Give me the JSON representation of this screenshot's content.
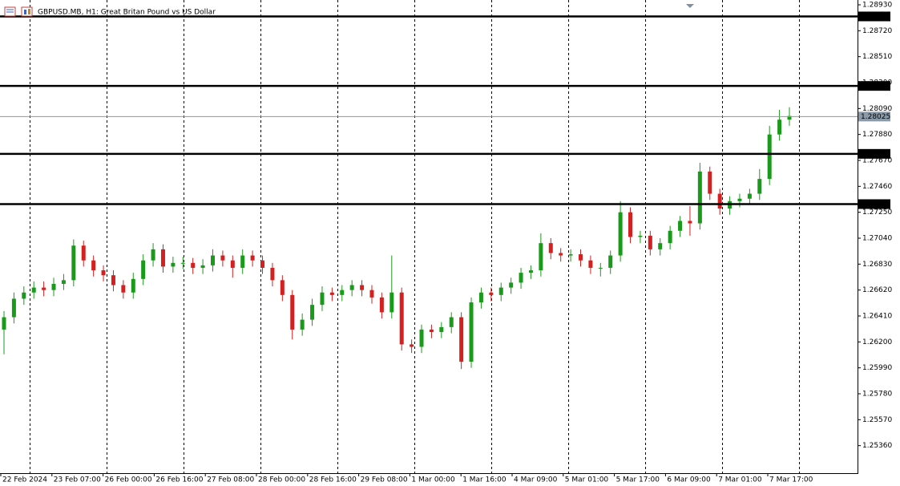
{
  "chart_data": {
    "type": "candlestick",
    "title": "GBPUSD.MB, H1:  Great Britan Pound vs US Dollar",
    "up_color": "#1a9a1a",
    "down_color": "#d42020",
    "ylim": [
      1.25137,
      1.28969
    ],
    "yticks": [
      {
        "value": 1.2893,
        "label": "1.28930"
      },
      {
        "value": 1.2872,
        "label": "1.28720"
      },
      {
        "value": 1.2851,
        "label": "1.28510"
      },
      {
        "value": 1.283,
        "label": "1.28300"
      },
      {
        "value": 1.2809,
        "label": "1.28090"
      },
      {
        "value": 1.2788,
        "label": "1.27880"
      },
      {
        "value": 1.2767,
        "label": "1.27670"
      },
      {
        "value": 1.2746,
        "label": "1.27460"
      },
      {
        "value": 1.2725,
        "label": "1.27250"
      },
      {
        "value": 1.2704,
        "label": "1.27040"
      },
      {
        "value": 1.2683,
        "label": "1.26830"
      },
      {
        "value": 1.2662,
        "label": "1.26620"
      },
      {
        "value": 1.2641,
        "label": "1.26410"
      },
      {
        "value": 1.262,
        "label": "1.26200"
      },
      {
        "value": 1.2599,
        "label": "1.25990"
      },
      {
        "value": 1.2578,
        "label": "1.25780"
      },
      {
        "value": 1.2557,
        "label": "1.25570"
      },
      {
        "value": 1.2536,
        "label": "1.25360"
      }
    ],
    "x_labels": [
      "22 Feb 2024",
      "23 Feb 07:00",
      "26 Feb 00:00",
      "26 Feb 16:00",
      "27 Feb 08:00",
      "28 Feb 00:00",
      "28 Feb 16:00",
      "29 Feb 08:00",
      "1 Mar 00:00",
      "1 Mar 16:00",
      "4 Mar 09:00",
      "5 Mar 01:00",
      "5 Mar 17:00",
      "6 Mar 09:00",
      "7 Mar 01:00",
      "7 Mar 17:00"
    ],
    "levels": [
      1.28836,
      1.28273,
      1.27723,
      1.27316
    ],
    "current_price": 1.28025,
    "open": [
      1.263,
      1.264,
      1.2655,
      1.266,
      1.2664,
      1.2662,
      1.2667,
      1.267,
      1.2698,
      1.2686,
      1.2678,
      1.2674,
      1.2666,
      1.266,
      1.2671,
      1.2686,
      1.2695,
      1.2681,
      1.2684,
      1.2684,
      1.268,
      1.2682,
      1.269,
      1.2686,
      1.268,
      1.269,
      1.2686,
      1.268,
      1.267,
      1.2658,
      1.263,
      1.2638,
      1.265,
      1.266,
      1.2658,
      1.2662,
      1.2666,
      1.2662,
      1.2656,
      1.2644,
      1.266,
      1.2618,
      1.2616,
      1.263,
      1.2628,
      1.2632,
      1.264,
      1.2604,
      1.2652,
      1.266,
      1.2658,
      1.2664,
      1.2668,
      1.2676,
      1.2678,
      1.27,
      1.2692,
      1.269,
      1.2691,
      1.2686,
      1.268,
      1.268,
      1.269,
      1.2725,
      1.2705,
      1.2706,
      1.2695,
      1.27,
      1.271,
      1.2718,
      1.2716,
      1.2758,
      1.274,
      1.2728,
      1.2734,
      1.2736,
      1.274,
      1.2752,
      1.2788,
      1.28
    ],
    "high": [
      1.2645,
      1.266,
      1.2665,
      1.2669,
      1.2669,
      1.2672,
      1.2675,
      1.2703,
      1.2702,
      1.269,
      1.2682,
      1.2678,
      1.267,
      1.2676,
      1.2691,
      1.27,
      1.2699,
      1.2689,
      1.2689,
      1.2688,
      1.2687,
      1.2695,
      1.2694,
      1.269,
      1.2695,
      1.2694,
      1.269,
      1.2684,
      1.2674,
      1.2662,
      1.2643,
      1.2655,
      1.2665,
      1.2664,
      1.2666,
      1.267,
      1.267,
      1.2666,
      1.266,
      1.269,
      1.2664,
      1.2622,
      1.2634,
      1.2634,
      1.2636,
      1.2644,
      1.2644,
      1.2656,
      1.2664,
      1.2664,
      1.2668,
      1.2672,
      1.268,
      1.2682,
      1.2708,
      1.2704,
      1.2696,
      1.2695,
      1.2695,
      1.269,
      1.2684,
      1.2694,
      1.2734,
      1.2729,
      1.271,
      1.271,
      1.2704,
      1.2714,
      1.2722,
      1.273,
      1.2765,
      1.2762,
      1.2744,
      1.2738,
      1.274,
      1.2744,
      1.276,
      1.2795,
      1.2808,
      1.281
    ],
    "low": [
      1.261,
      1.2635,
      1.265,
      1.2655,
      1.2657,
      1.2657,
      1.2662,
      1.2665,
      1.2681,
      1.2673,
      1.2669,
      1.2661,
      1.2655,
      1.2655,
      1.2666,
      1.2681,
      1.2676,
      1.2676,
      1.2679,
      1.2675,
      1.2675,
      1.2677,
      1.2681,
      1.2672,
      1.2675,
      1.2681,
      1.2675,
      1.2665,
      1.2653,
      1.2622,
      1.2625,
      1.2633,
      1.2645,
      1.2653,
      1.2653,
      1.2657,
      1.2657,
      1.2651,
      1.2639,
      1.2639,
      1.2613,
      1.2611,
      1.2611,
      1.2623,
      1.2623,
      1.2627,
      1.2598,
      1.2599,
      1.2647,
      1.2653,
      1.2653,
      1.2659,
      1.2663,
      1.2671,
      1.2673,
      1.2687,
      1.2685,
      1.2685,
      1.2681,
      1.2675,
      1.2673,
      1.2675,
      1.2685,
      1.27,
      1.27,
      1.269,
      1.269,
      1.2695,
      1.2705,
      1.2706,
      1.2711,
      1.2735,
      1.2723,
      1.2723,
      1.2729,
      1.2731,
      1.2735,
      1.2747,
      1.2783,
      1.2795
    ],
    "close": [
      1.264,
      1.2655,
      1.266,
      1.2664,
      1.2662,
      1.2667,
      1.267,
      1.2698,
      1.2686,
      1.2678,
      1.2674,
      1.2666,
      1.266,
      1.2671,
      1.2686,
      1.2695,
      1.2681,
      1.2684,
      1.2684,
      1.268,
      1.2682,
      1.269,
      1.2686,
      1.268,
      1.269,
      1.2686,
      1.268,
      1.267,
      1.2658,
      1.263,
      1.2638,
      1.265,
      1.266,
      1.2658,
      1.2662,
      1.2666,
      1.2662,
      1.2656,
      1.2644,
      1.266,
      1.2618,
      1.2616,
      1.263,
      1.2628,
      1.2632,
      1.264,
      1.2604,
      1.2652,
      1.266,
      1.2658,
      1.2664,
      1.2668,
      1.2676,
      1.2678,
      1.27,
      1.2692,
      1.269,
      1.2691,
      1.2686,
      1.268,
      1.268,
      1.269,
      1.2725,
      1.2705,
      1.2706,
      1.2695,
      1.27,
      1.271,
      1.2718,
      1.2716,
      1.2758,
      1.274,
      1.2728,
      1.2734,
      1.2736,
      1.274,
      1.2752,
      1.2788,
      1.28,
      1.2803
    ]
  }
}
